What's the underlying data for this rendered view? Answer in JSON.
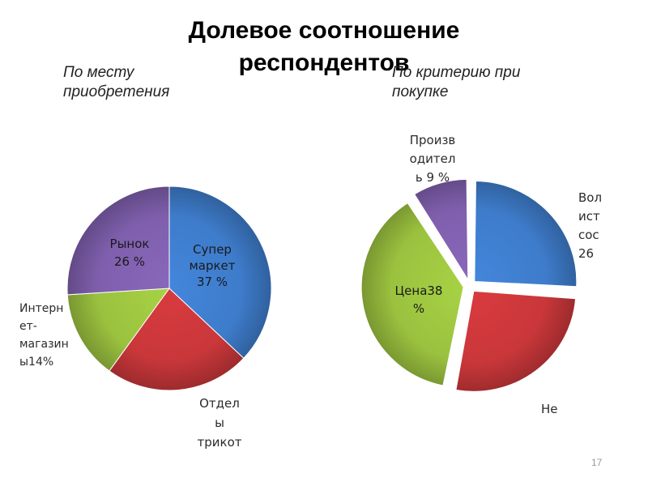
{
  "slide": {
    "title": "Долевое соотношение респондентов",
    "page_number": "17"
  },
  "colors": {
    "blue": "#3E7CCB",
    "red": "#C9373A",
    "green": "#9BC23F",
    "purple": "#7F5FAD"
  },
  "chart_data": [
    {
      "type": "pie",
      "title": "По месту приобретения",
      "slices": [
        {
          "label_lines": [
            "Супер",
            "маркет",
            "37 %"
          ],
          "value": 37,
          "color": "#3E7CCB"
        },
        {
          "label_lines": [
            "Отдел",
            "ы",
            "трикот"
          ],
          "value": 23,
          "color": "#C9373A"
        },
        {
          "label_lines": [
            "Интерн",
            "ет-",
            "магазин",
            "ы14%"
          ],
          "value": 14,
          "color": "#9BC23F"
        },
        {
          "label_lines": [
            "Рынок",
            "26 %"
          ],
          "value": 26,
          "color": "#7F5FAD"
        }
      ]
    },
    {
      "type": "pie",
      "title": "По критерию при покупке",
      "exploded": true,
      "slices": [
        {
          "label_lines": [
            "Вол",
            "ист",
            "сос",
            "26"
          ],
          "value": 26,
          "color": "#3E7CCB"
        },
        {
          "label_lines": [
            "Не"
          ],
          "value": 27,
          "color": "#C9373A"
        },
        {
          "label_lines": [
            "Цена38",
            "%"
          ],
          "value": 38,
          "color": "#9BC23F"
        },
        {
          "label_lines": [
            "Произв",
            "одител",
            "ь 9 %"
          ],
          "value": 9,
          "color": "#7F5FAD"
        }
      ]
    }
  ]
}
